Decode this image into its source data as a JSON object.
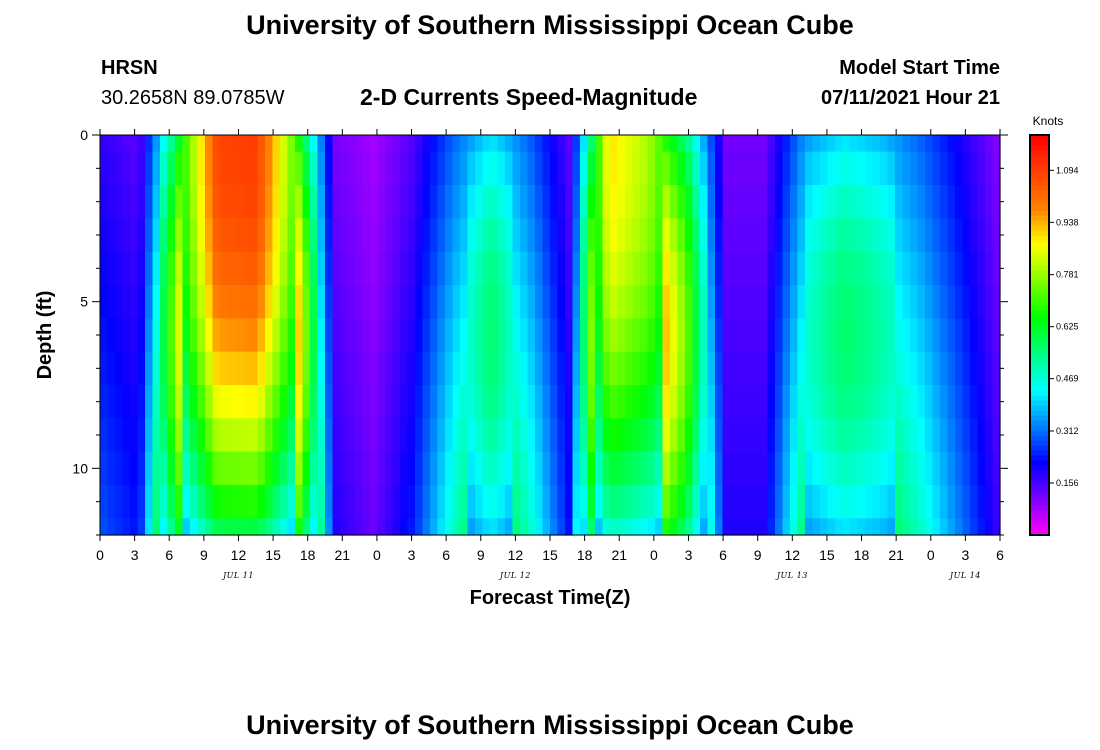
{
  "header": {
    "title_top": "University of Southern Mississippi Ocean Cube",
    "title_bottom": "University of Southern Mississippi Ocean Cube",
    "station": "HRSN",
    "location": "30.2658N  89.0785W",
    "plot_title": "2-D Currents Speed-Magnitude",
    "model_label": "Model Start Time",
    "model_time": "07/11/2021 Hour 21"
  },
  "colors": {
    "palette": [
      "#ff00ff",
      "#8000ff",
      "#0000ff",
      "#0080ff",
      "#00ffff",
      "#00ff80",
      "#00ff00",
      "#80ff00",
      "#ffff00",
      "#ff8000",
      "#ff4000",
      "#ff0000"
    ]
  },
  "chart_data": {
    "type": "heatmap",
    "title": "2-D Currents Speed-Magnitude",
    "xlabel": "Forecast Time(Z)",
    "ylabel": "Depth (ft)",
    "x_hours_from_start": [
      0,
      3,
      6,
      9,
      12,
      15,
      18,
      21,
      24,
      27,
      30,
      33,
      36,
      39,
      42,
      45,
      48,
      51,
      54,
      57,
      60,
      63,
      66,
      69,
      72,
      75,
      78,
      81
    ],
    "x_tick_labels": [
      "0",
      "3",
      "6",
      "9",
      "12",
      "15",
      "18",
      "21",
      "0",
      "3",
      "6",
      "9",
      "12",
      "15",
      "18",
      "21",
      "0",
      "3",
      "6",
      "9",
      "12",
      "15",
      "18",
      "21",
      "0",
      "3",
      "6"
    ],
    "x_tick_hours_since_jul10_00": [
      24,
      27,
      30,
      33,
      36,
      39,
      42,
      45,
      48,
      51,
      54,
      57,
      60,
      63,
      66,
      69,
      72,
      75,
      78,
      81,
      84,
      87,
      90,
      93,
      96,
      99,
      102
    ],
    "date_labels": [
      {
        "label": "JUL 11",
        "hour": 36
      },
      {
        "label": "JUL 12",
        "hour": 60
      },
      {
        "label": "JUL 13",
        "hour": 84
      },
      {
        "label": "JUL 14",
        "hour": 99
      }
    ],
    "xlim_hours": [
      24,
      102
    ],
    "y_tick_labels": [
      "0",
      "5",
      "10"
    ],
    "y_ticks": [
      0,
      5,
      10
    ],
    "ylim": [
      12,
      0
    ],
    "colorbar": {
      "units": "Knots",
      "range": [
        0.0,
        1.2
      ],
      "tick_values": [
        1.094,
        0.938,
        0.781,
        0.625,
        0.469,
        0.312,
        0.156
      ],
      "tick_labels": [
        "1.094",
        "0.938",
        "0.781",
        "0.625",
        "0.469",
        "0.312",
        "0.156"
      ]
    },
    "depth_rows_ft": [
      0,
      1,
      2,
      3,
      4,
      5,
      6,
      7,
      8,
      9,
      10,
      11,
      12
    ],
    "surface_speed_profile_knots": [
      0.18,
      0.14,
      0.62,
      1.08,
      1.1,
      0.72,
      0.12,
      0.08,
      0.15,
      0.3,
      0.42,
      0.3,
      0.14,
      0.9,
      0.8,
      0.55,
      0.12,
      0.12,
      0.35,
      0.42,
      0.38,
      0.3,
      0.2,
      0.1
    ]
  }
}
